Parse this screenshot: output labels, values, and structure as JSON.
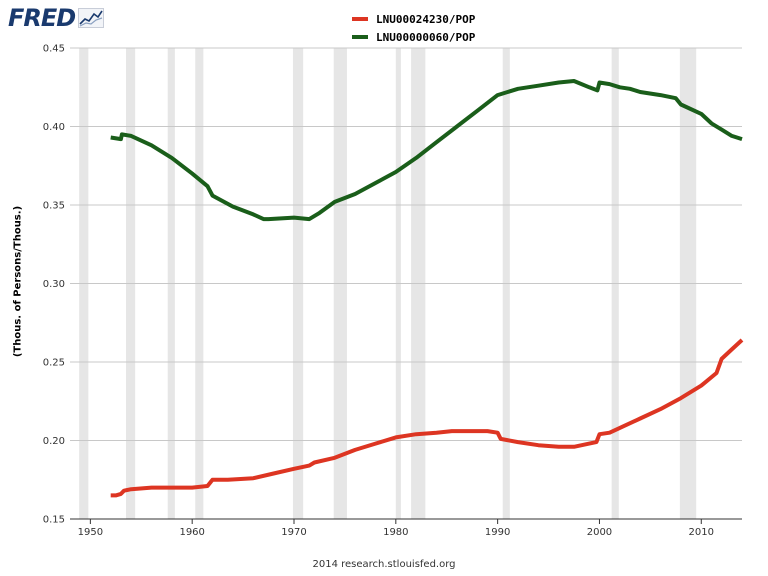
{
  "brand": {
    "logo_text": "FRED",
    "logo_icon": "chart-line-icon"
  },
  "footer": {
    "text": "2014 research.stlouisfed.org"
  },
  "chart_data": {
    "type": "line",
    "title": "",
    "xlabel": "",
    "ylabel": "(Thous. of Persons/Thous.)",
    "xlim": [
      1948,
      2014
    ],
    "ylim": [
      0.15,
      0.45
    ],
    "grid": true,
    "legend_position": "top-center",
    "x_ticks": [
      1950,
      1960,
      1970,
      1980,
      1990,
      2000,
      2010
    ],
    "y_ticks": [
      0.15,
      0.2,
      0.25,
      0.3,
      0.35,
      0.4,
      0.45
    ],
    "x_tick_labels": [
      "1950",
      "1960",
      "1970",
      "1980",
      "1990",
      "2000",
      "2010"
    ],
    "y_tick_labels": [
      "0.15",
      "0.20",
      "0.25",
      "0.30",
      "0.35",
      "0.40",
      "0.45"
    ],
    "recessions": [
      [
        1948.9,
        1949.8
      ],
      [
        1953.5,
        1954.4
      ],
      [
        1957.6,
        1958.3
      ],
      [
        1960.3,
        1961.1
      ],
      [
        1969.9,
        1970.9
      ],
      [
        1973.9,
        1975.2
      ],
      [
        1980.0,
        1980.5
      ],
      [
        1981.5,
        1982.9
      ],
      [
        1990.5,
        1991.2
      ],
      [
        2001.2,
        2001.9
      ],
      [
        2007.9,
        2009.5
      ]
    ],
    "series": [
      {
        "name": "LNU00024230/POP",
        "color": "#dd3522",
        "x": [
          1952.0,
          1952.5,
          1953.0,
          1953.3,
          1954,
          1956,
          1958,
          1960,
          1961.5,
          1962,
          1963.5,
          1966,
          1968,
          1970,
          1971.5,
          1972,
          1974,
          1976,
          1978,
          1980,
          1982,
          1984,
          1985.5,
          1987,
          1989,
          1990,
          1990.3,
          1992,
          1994,
          1996,
          1997.5,
          1999,
          1999.7,
          2000.0,
          2001,
          2002,
          2004,
          2006,
          2008,
          2010,
          2011.5,
          2012,
          2013,
          2014
        ],
        "values": [
          0.165,
          0.165,
          0.166,
          0.168,
          0.169,
          0.17,
          0.17,
          0.17,
          0.171,
          0.175,
          0.175,
          0.176,
          0.179,
          0.182,
          0.184,
          0.186,
          0.189,
          0.194,
          0.198,
          0.202,
          0.204,
          0.205,
          0.206,
          0.206,
          0.206,
          0.205,
          0.201,
          0.199,
          0.197,
          0.196,
          0.196,
          0.198,
          0.199,
          0.204,
          0.205,
          0.208,
          0.214,
          0.22,
          0.227,
          0.235,
          0.243,
          0.252,
          0.258,
          0.264
        ]
      },
      {
        "name": "LNU00000060/POP",
        "color": "#1a5e1a",
        "x": [
          1952.0,
          1953.0,
          1953.1,
          1954,
          1956,
          1958,
          1960,
          1961.5,
          1962,
          1964,
          1966,
          1967,
          1967.5,
          1970,
          1971.5,
          1972.5,
          1974,
          1976,
          1978,
          1980,
          1982,
          1984,
          1986,
          1988,
          1990,
          1992,
          1994,
          1996,
          1997.5,
          1999,
          1999.8,
          2000,
          2001,
          2002,
          2003,
          2004,
          2006,
          2007.5,
          2008,
          2010,
          2011,
          2012,
          2013,
          2014
        ],
        "values": [
          0.393,
          0.392,
          0.395,
          0.394,
          0.388,
          0.38,
          0.37,
          0.362,
          0.356,
          0.349,
          0.344,
          0.341,
          0.341,
          0.342,
          0.341,
          0.345,
          0.352,
          0.357,
          0.364,
          0.371,
          0.38,
          0.39,
          0.4,
          0.41,
          0.42,
          0.424,
          0.426,
          0.428,
          0.429,
          0.425,
          0.423,
          0.428,
          0.427,
          0.425,
          0.424,
          0.422,
          0.42,
          0.418,
          0.414,
          0.408,
          0.402,
          0.398,
          0.394,
          0.392
        ]
      }
    ]
  }
}
